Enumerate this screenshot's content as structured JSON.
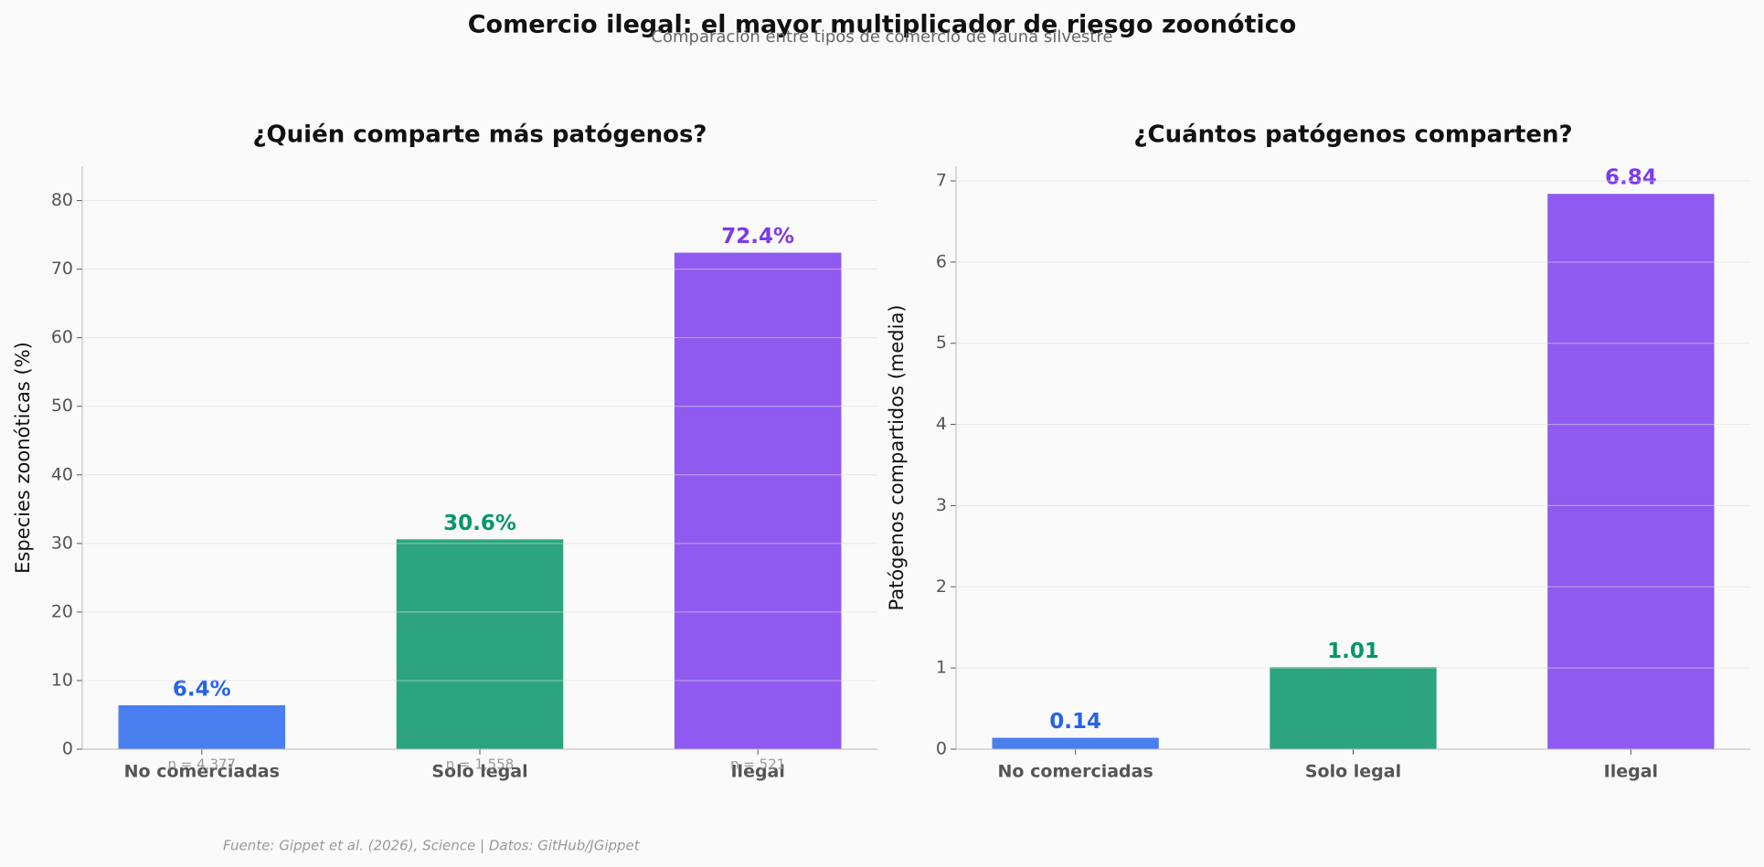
{
  "title": "Comercio ilegal: el mayor multiplicador de riesgo zoonótico",
  "subtitle": "Comparación entre tipos de comercio de fauna silvestre",
  "source": "Fuente: Gippet et al. (2026), Science | Datos: GitHub/JGippet",
  "chart_data": [
    {
      "type": "bar",
      "title": "¿Quién comparte más patógenos?",
      "ylabel": "Especies zoonóticas (%)",
      "categories": [
        "No comerciadas",
        "Solo legal",
        "Ilegal"
      ],
      "values": [
        6.4,
        30.6,
        72.4
      ],
      "value_labels": [
        "6.4%",
        "30.6%",
        "72.4%"
      ],
      "annotations": [
        "n = 4,377",
        "n = 1,558",
        "n = 521"
      ],
      "colors": [
        "#4a7fef",
        "#2ca57f",
        "#8e5aef"
      ],
      "label_colors": [
        "#2563eb",
        "#059669",
        "#7c3aed"
      ],
      "ylim": [
        0,
        85
      ],
      "yticks": [
        0,
        10,
        20,
        30,
        40,
        50,
        60,
        70,
        80
      ],
      "grid": true
    },
    {
      "type": "bar",
      "title": "¿Cuántos patógenos comparten?",
      "ylabel": "Patógenos compartidos (media)",
      "categories": [
        "No comerciadas",
        "Solo legal",
        "Ilegal"
      ],
      "values": [
        0.14,
        1.01,
        6.84
      ],
      "colors": [
        "#4a7fef",
        "#2ca57f",
        "#8e5aef"
      ],
      "label_colors": [
        "#2563eb",
        "#059669",
        "#7c3aed"
      ],
      "ylim": [
        0,
        7.18
      ],
      "yticks": [
        0,
        1,
        2,
        3,
        4,
        5,
        6,
        7
      ],
      "grid": true
    }
  ]
}
